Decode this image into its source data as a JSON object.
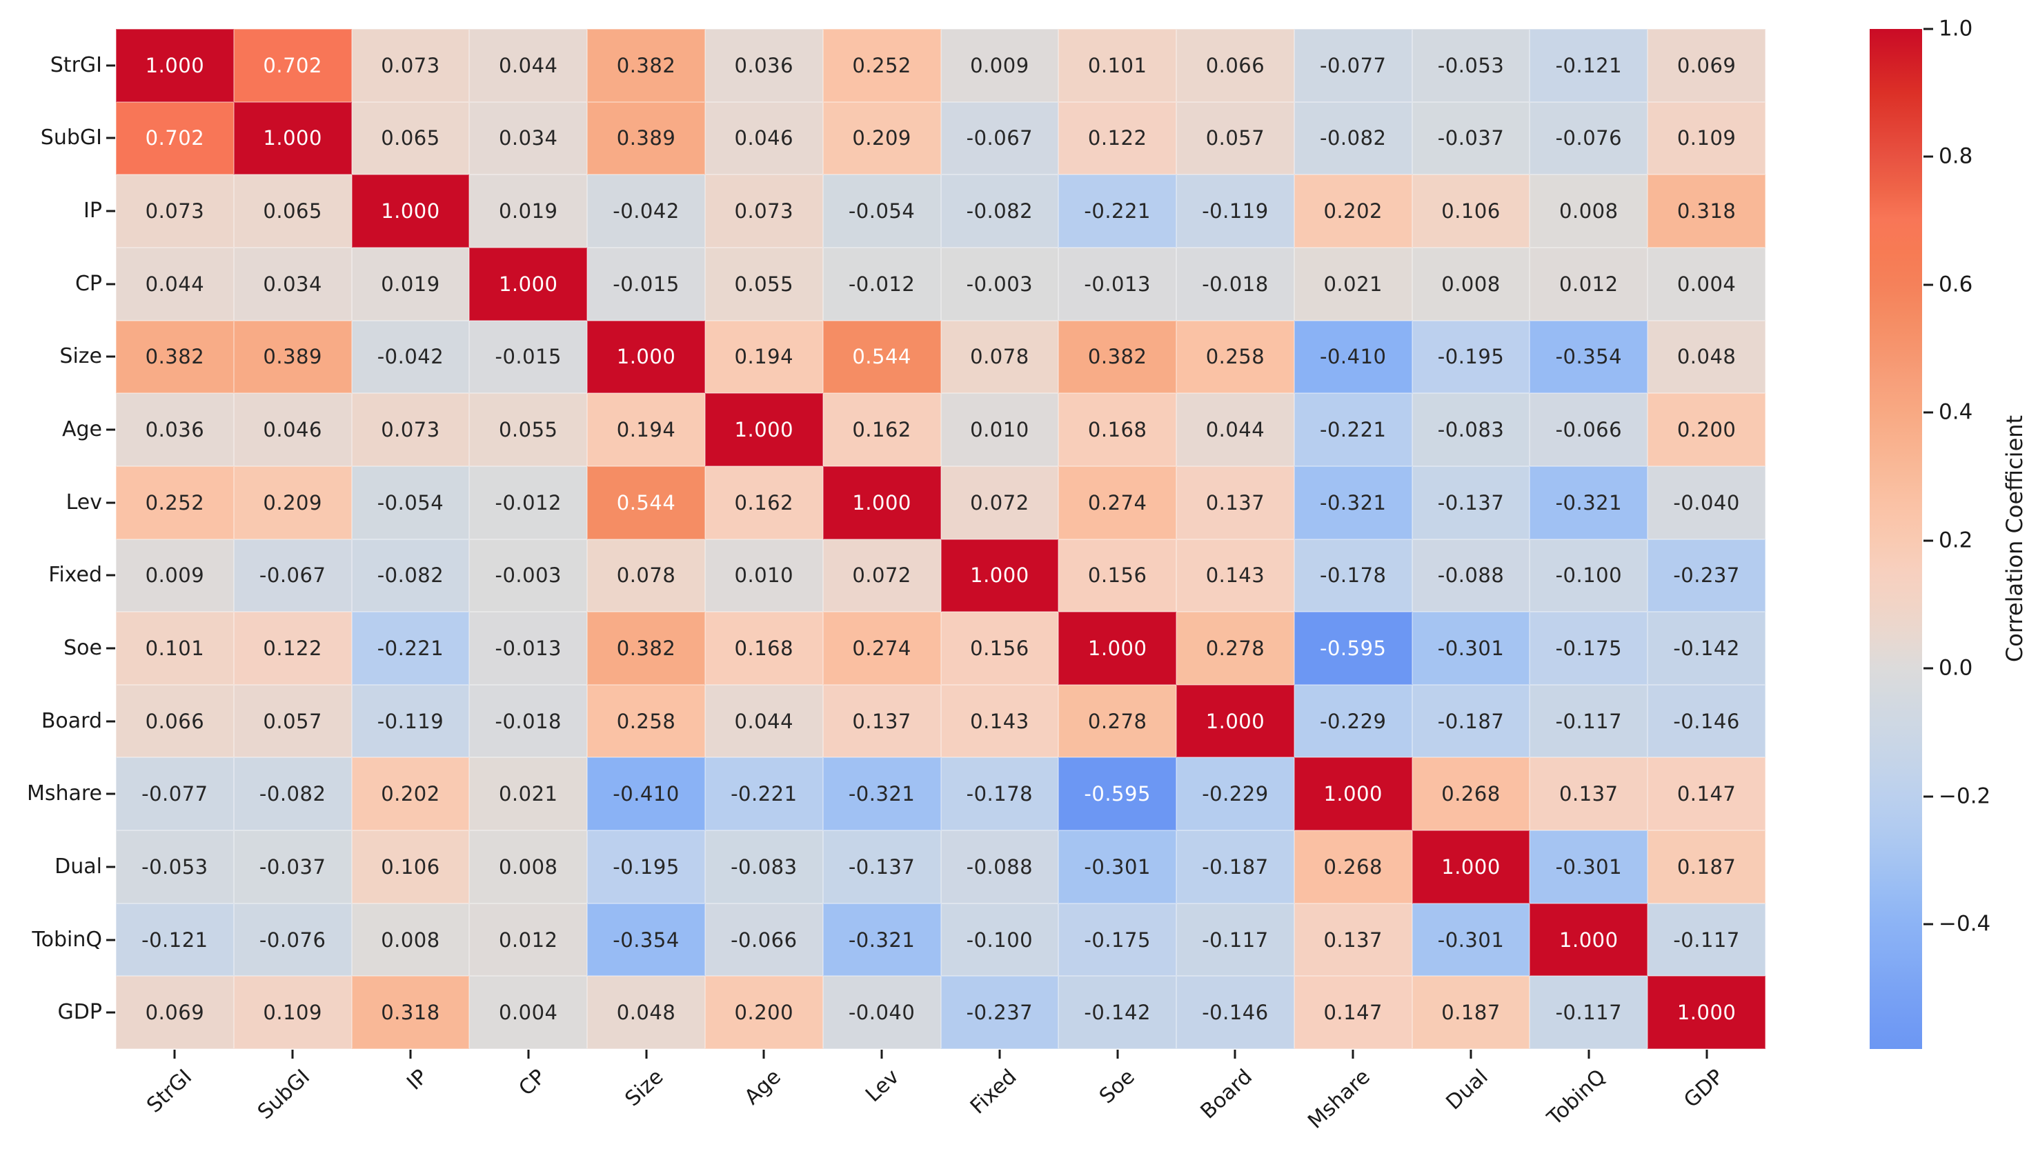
{
  "chart_data": {
    "type": "heatmap",
    "title": "",
    "variables": [
      "StrGI",
      "SubGI",
      "IP",
      "CP",
      "Size",
      "Age",
      "Lev",
      "Fixed",
      "Soe",
      "Board",
      "Mshare",
      "Dual",
      "TobinQ",
      "GDP"
    ],
    "matrix": [
      [
        1.0,
        0.702,
        0.073,
        0.044,
        0.382,
        0.036,
        0.252,
        0.009,
        0.101,
        0.066,
        -0.077,
        -0.053,
        -0.121,
        0.069
      ],
      [
        0.702,
        1.0,
        0.065,
        0.034,
        0.389,
        0.046,
        0.209,
        -0.067,
        0.122,
        0.057,
        -0.082,
        -0.037,
        -0.076,
        0.109
      ],
      [
        0.073,
        0.065,
        1.0,
        0.019,
        -0.042,
        0.073,
        -0.054,
        -0.082,
        -0.221,
        -0.119,
        0.202,
        0.106,
        0.008,
        0.318
      ],
      [
        0.044,
        0.034,
        0.019,
        1.0,
        -0.015,
        0.055,
        -0.012,
        -0.003,
        -0.013,
        -0.018,
        0.021,
        0.008,
        0.012,
        0.004
      ],
      [
        0.382,
        0.389,
        -0.042,
        -0.015,
        1.0,
        0.194,
        0.544,
        0.078,
        0.382,
        0.258,
        -0.41,
        -0.195,
        -0.354,
        0.048
      ],
      [
        0.036,
        0.046,
        0.073,
        0.055,
        0.194,
        1.0,
        0.162,
        0.01,
        0.168,
        0.044,
        -0.221,
        -0.083,
        -0.066,
        0.2
      ],
      [
        0.252,
        0.209,
        -0.054,
        -0.012,
        0.544,
        0.162,
        1.0,
        0.072,
        0.274,
        0.137,
        -0.321,
        -0.137,
        -0.321,
        -0.04
      ],
      [
        0.009,
        -0.067,
        -0.082,
        -0.003,
        0.078,
        0.01,
        0.072,
        1.0,
        0.156,
        0.143,
        -0.178,
        -0.088,
        -0.1,
        -0.237
      ],
      [
        0.101,
        0.122,
        -0.221,
        -0.013,
        0.382,
        0.168,
        0.274,
        0.156,
        1.0,
        0.278,
        -0.595,
        -0.301,
        -0.175,
        -0.142
      ],
      [
        0.066,
        0.057,
        -0.119,
        -0.018,
        0.258,
        0.044,
        0.137,
        0.143,
        0.278,
        1.0,
        -0.229,
        -0.187,
        -0.117,
        -0.146
      ],
      [
        -0.077,
        -0.082,
        0.202,
        0.021,
        -0.41,
        -0.221,
        -0.321,
        -0.178,
        -0.595,
        -0.229,
        1.0,
        0.268,
        0.137,
        0.147
      ],
      [
        -0.053,
        -0.037,
        0.106,
        0.008,
        -0.195,
        -0.083,
        -0.137,
        -0.088,
        -0.301,
        -0.187,
        0.268,
        1.0,
        -0.301,
        0.187
      ],
      [
        -0.121,
        -0.076,
        0.008,
        0.012,
        -0.354,
        -0.066,
        -0.321,
        -0.1,
        -0.175,
        -0.117,
        0.137,
        -0.301,
        1.0,
        -0.117
      ],
      [
        0.069,
        0.109,
        0.318,
        0.004,
        0.048,
        0.2,
        -0.04,
        -0.237,
        -0.142,
        -0.146,
        0.147,
        0.187,
        -0.117,
        1.0
      ]
    ],
    "value_decimals": 3,
    "colorbar": {
      "label": "Correlation Coefficient",
      "vmin": -0.595,
      "vmax": 1.0,
      "ticks": [
        {
          "label": "1.0",
          "v": 1.0
        },
        {
          "label": "0.8",
          "v": 0.8
        },
        {
          "label": "0.6",
          "v": 0.6
        },
        {
          "label": "0.4",
          "v": 0.4
        },
        {
          "label": "0.2",
          "v": 0.2
        },
        {
          "label": "0.0",
          "v": 0.0
        },
        {
          "label": "−0.2",
          "v": -0.2
        },
        {
          "label": "−0.4",
          "v": -0.4
        }
      ]
    },
    "colormap_stops": [
      {
        "v": -0.595,
        "c": "#6c97f3"
      },
      {
        "v": -0.55,
        "c": "#729cf4"
      },
      {
        "v": -0.5,
        "c": "#7aa3f4"
      },
      {
        "v": -0.45,
        "c": "#84acf5"
      },
      {
        "v": -0.4,
        "c": "#8cb3f5"
      },
      {
        "v": -0.35,
        "c": "#98bcf4"
      },
      {
        "v": -0.3,
        "c": "#a5c4f2"
      },
      {
        "v": -0.25,
        "c": "#b1cbf0"
      },
      {
        "v": -0.2,
        "c": "#bbd0ee"
      },
      {
        "v": -0.15,
        "c": "#c4d4e9"
      },
      {
        "v": -0.1,
        "c": "#ccd7e5"
      },
      {
        "v": -0.05,
        "c": "#d3d9e0"
      },
      {
        "v": 0.0,
        "c": "#dcdbdb"
      },
      {
        "v": 0.05,
        "c": "#e8d8d0"
      },
      {
        "v": 0.1,
        "c": "#f1d4c6"
      },
      {
        "v": 0.15,
        "c": "#f7d0bf"
      },
      {
        "v": 0.2,
        "c": "#f9cab2"
      },
      {
        "v": 0.25,
        "c": "#fac3a7"
      },
      {
        "v": 0.3,
        "c": "#f9bb9b"
      },
      {
        "v": 0.35,
        "c": "#f9b28f"
      },
      {
        "v": 0.4,
        "c": "#f8a983"
      },
      {
        "v": 0.45,
        "c": "#f79f7a"
      },
      {
        "v": 0.5,
        "c": "#f6956e"
      },
      {
        "v": 0.544,
        "c": "#f58d64"
      },
      {
        "v": 0.6,
        "c": "#f5815a"
      },
      {
        "v": 0.65,
        "c": "#f77b54"
      },
      {
        "v": 0.702,
        "c": "#f87657"
      },
      {
        "v": 0.75,
        "c": "#ef6448"
      },
      {
        "v": 0.8,
        "c": "#e85241"
      },
      {
        "v": 0.9,
        "c": "#dc3027"
      },
      {
        "v": 1.0,
        "c": "#ca0b26"
      }
    ],
    "annotation_text_colors": {
      "dark": "#262626",
      "light": "#ffffff"
    },
    "layout": {
      "grid": false,
      "x_ticklabel_rotation": 43,
      "colorbar_position": "right"
    }
  }
}
